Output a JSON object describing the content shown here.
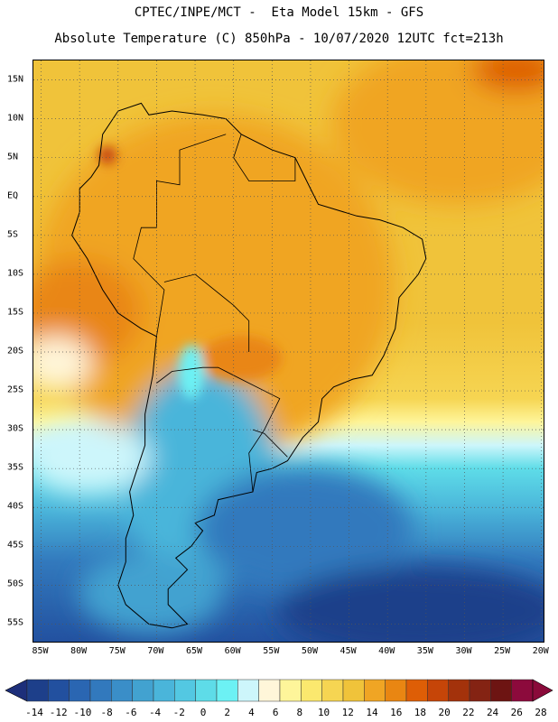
{
  "header": {
    "line1": "CPTEC/INPE/MCT -  Eta Model 15km - GFS",
    "line2": "Absolute Temperature (C) 850hPa - 10/07/2020 12UTC fct=213h"
  },
  "map": {
    "lat_labels": [
      "15N",
      "10N",
      "5N",
      "EQ",
      "5S",
      "10S",
      "15S",
      "20S",
      "25S",
      "30S",
      "35S",
      "40S",
      "45S",
      "50S",
      "55S"
    ],
    "lat_values": [
      15,
      10,
      5,
      0,
      -5,
      -10,
      -15,
      -20,
      -25,
      -30,
      -35,
      -40,
      -45,
      -50,
      -55
    ],
    "lon_labels": [
      "85W",
      "80W",
      "75W",
      "70W",
      "65W",
      "60W",
      "55W",
      "50W",
      "45W",
      "40W",
      "35W",
      "30W",
      "25W",
      "20W"
    ],
    "lon_values": [
      -85,
      -80,
      -75,
      -70,
      -65,
      -60,
      -55,
      -50,
      -45,
      -40,
      -35,
      -30,
      -25,
      -20
    ],
    "lat_range": [
      -57.5,
      17.5
    ],
    "lon_range": [
      -86,
      -19.5
    ],
    "gridlines": "dotted"
  },
  "colorbar": {
    "labels": [
      "-14",
      "-12",
      "-10",
      "-8",
      "-6",
      "-4",
      "-2",
      "0",
      "2",
      "4",
      "6",
      "8",
      "10",
      "12",
      "14",
      "16",
      "18",
      "20",
      "22",
      "24",
      "26",
      "28"
    ],
    "colors": [
      "#1d3f8a",
      "#22509f",
      "#2a66b2",
      "#3279bd",
      "#3a8ec8",
      "#42a2d0",
      "#4ab5da",
      "#53c8e2",
      "#5edce8",
      "#6cf1f4",
      "#cdf6fb",
      "#fff6d9",
      "#fef59a",
      "#fbe86e",
      "#f6d552",
      "#f0c33a",
      "#f0a524",
      "#e98612",
      "#de5e06",
      "#c64508",
      "#a3320b",
      "#842313",
      "#6d1412",
      "#8c0a3c"
    ],
    "left_arrow_color": "#1d2f7a",
    "right_arrow_color": "#8a0a3a"
  }
}
